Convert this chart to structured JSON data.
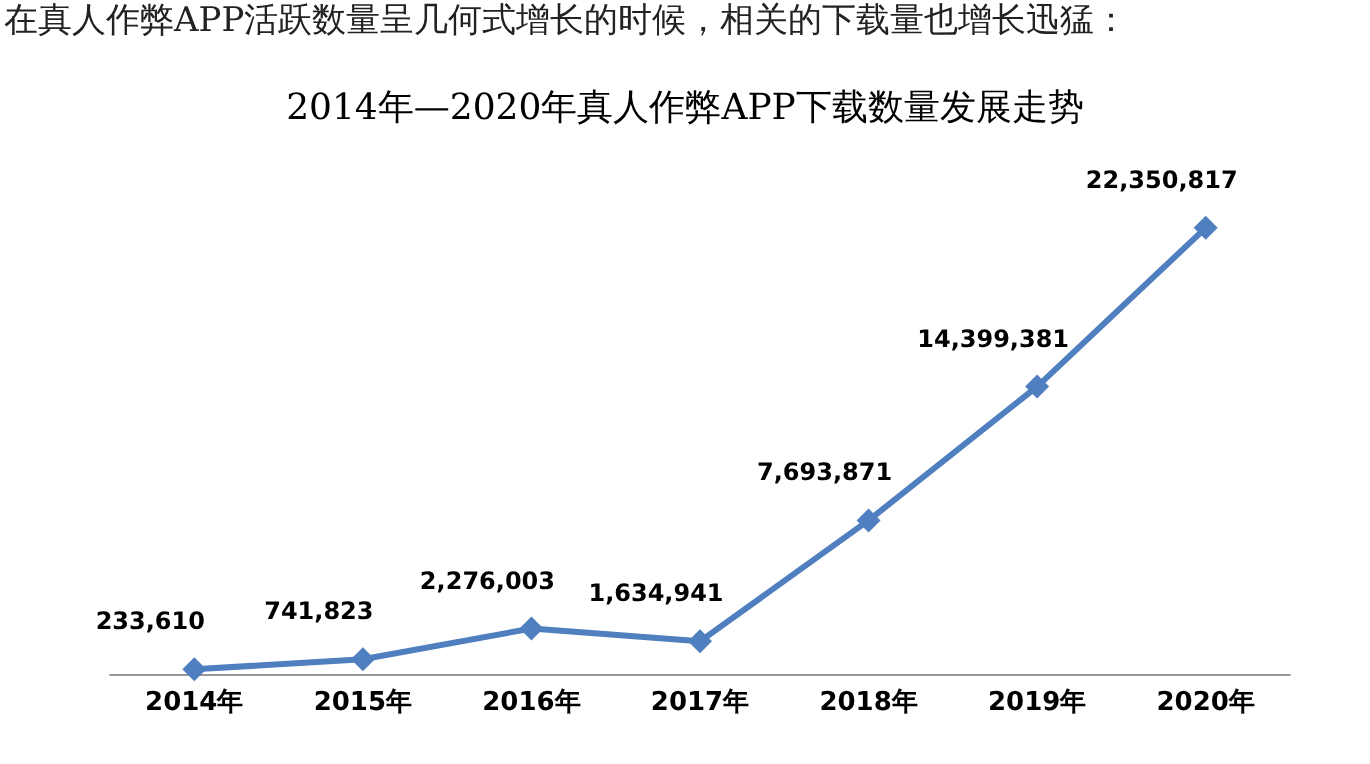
{
  "chart_data": {
    "type": "line",
    "title": "2014年—2020年真人作弊APP下载数量发展走势",
    "annotations": [
      "在真人作弊APP活跃数量呈几何式增长的时候，相关的下载量也增长迅猛："
    ],
    "categories": [
      "2014年",
      "2015年",
      "2016年",
      "2017年",
      "2018年",
      "2019年",
      "2020年"
    ],
    "series": [
      {
        "color": "#4f7fbf",
        "values": [
          233610,
          741823,
          2276003,
          1634941,
          7693871,
          14399381,
          22350817
        ],
        "value_labels": [
          "233,610",
          "741,823",
          "2,276,003",
          "1,634,941",
          "7,693,871",
          "14,399,381",
          "22,350,817"
        ]
      }
    ],
    "marker": "diamond",
    "line_style": "solid"
  }
}
